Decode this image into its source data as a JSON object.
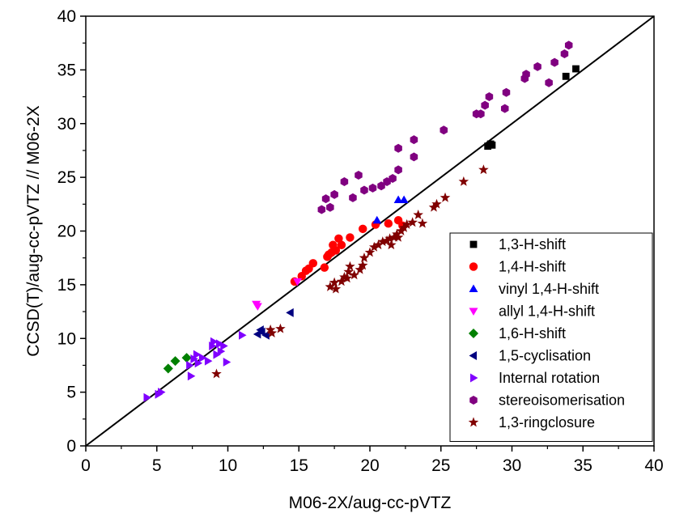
{
  "chart_data": {
    "type": "scatter",
    "title": "",
    "xlabel": "M06-2X/aug-cc-pVTZ",
    "ylabel": "CCSD(T)/aug-cc-pVTZ // M06-2X",
    "xlim": [
      0,
      40
    ],
    "ylim": [
      0,
      40
    ],
    "x_ticks": [
      "0",
      "5",
      "10",
      "15",
      "20",
      "25",
      "30",
      "35",
      "40"
    ],
    "y_ticks": [
      "0",
      "5",
      "10",
      "15",
      "20",
      "25",
      "30",
      "35",
      "40"
    ],
    "grid": false,
    "legend_position": "bottom-right",
    "reference_line": {
      "slope": 1,
      "intercept": 0,
      "color": "#000000"
    },
    "series": [
      {
        "name": "1,3-H-shift",
        "marker": "square",
        "color": "#000000",
        "points": [
          [
            28.3,
            27.9
          ],
          [
            28.6,
            28.0
          ],
          [
            28.5,
            28.1
          ],
          [
            33.8,
            34.4
          ],
          [
            34.5,
            35.1
          ]
        ]
      },
      {
        "name": "1,4-H-shift",
        "marker": "circle",
        "color": "#ff0000",
        "points": [
          [
            14.7,
            15.3
          ],
          [
            15.2,
            15.8
          ],
          [
            15.5,
            16.3
          ],
          [
            15.7,
            16.5
          ],
          [
            16.0,
            17.0
          ],
          [
            16.8,
            16.6
          ],
          [
            17.0,
            17.6
          ],
          [
            17.1,
            17.8
          ],
          [
            17.3,
            18.0
          ],
          [
            17.4,
            18.7
          ],
          [
            17.6,
            18.2
          ],
          [
            17.8,
            19.3
          ],
          [
            18.0,
            18.7
          ],
          [
            18.6,
            19.4
          ],
          [
            19.5,
            20.2
          ],
          [
            20.4,
            20.6
          ],
          [
            21.3,
            20.7
          ],
          [
            22.0,
            21.0
          ],
          [
            22.3,
            20.5
          ]
        ]
      },
      {
        "name": "vinyl 1,4-H-shift",
        "marker": "triangle-up",
        "color": "#0000ff",
        "points": [
          [
            20.5,
            21.0
          ],
          [
            22.0,
            22.9
          ],
          [
            22.4,
            22.9
          ]
        ]
      },
      {
        "name": "allyl 1,4-H-shift",
        "marker": "triangle-down",
        "color": "#ff00ff",
        "points": [
          [
            12.0,
            13.2
          ],
          [
            12.1,
            13.0
          ],
          [
            14.9,
            15.3
          ]
        ]
      },
      {
        "name": "1,6-H-shift",
        "marker": "diamond",
        "color": "#008000",
        "points": [
          [
            5.8,
            7.2
          ],
          [
            6.3,
            7.9
          ],
          [
            7.1,
            8.2
          ]
        ]
      },
      {
        "name": "1,5-cyclisation",
        "marker": "triangle-left",
        "color": "#000080",
        "points": [
          [
            12.1,
            10.4
          ],
          [
            12.4,
            10.6
          ],
          [
            12.7,
            10.3
          ],
          [
            12.3,
            10.8
          ],
          [
            14.4,
            12.4
          ]
        ]
      },
      {
        "name": "Internal rotation",
        "marker": "triangle-right",
        "color": "#8000ff",
        "points": [
          [
            4.3,
            4.5
          ],
          [
            5.1,
            4.8
          ],
          [
            5.3,
            5.0
          ],
          [
            7.3,
            7.5
          ],
          [
            7.4,
            6.5
          ],
          [
            7.6,
            8.1
          ],
          [
            7.8,
            8.5
          ],
          [
            7.9,
            7.7
          ],
          [
            8.2,
            8.2
          ],
          [
            8.6,
            7.9
          ],
          [
            8.9,
            9.3
          ],
          [
            9.0,
            9.7
          ],
          [
            9.2,
            8.5
          ],
          [
            9.4,
            9.5
          ],
          [
            9.5,
            8.8
          ],
          [
            9.7,
            9.3
          ],
          [
            9.9,
            7.8
          ],
          [
            11.0,
            10.3
          ]
        ]
      },
      {
        "name": "stereoisomerisation",
        "marker": "hexagon",
        "color": "#800080",
        "points": [
          [
            16.6,
            22.0
          ],
          [
            16.9,
            23.0
          ],
          [
            17.2,
            22.2
          ],
          [
            17.5,
            23.4
          ],
          [
            18.2,
            24.6
          ],
          [
            18.8,
            23.1
          ],
          [
            19.2,
            25.2
          ],
          [
            19.6,
            23.8
          ],
          [
            20.2,
            24.0
          ],
          [
            20.8,
            24.2
          ],
          [
            21.2,
            24.6
          ],
          [
            21.6,
            24.9
          ],
          [
            22.0,
            25.7
          ],
          [
            22.0,
            27.7
          ],
          [
            23.1,
            26.9
          ],
          [
            23.1,
            28.5
          ],
          [
            25.2,
            29.4
          ],
          [
            27.5,
            30.9
          ],
          [
            27.8,
            30.9
          ],
          [
            28.1,
            31.7
          ],
          [
            28.4,
            32.5
          ],
          [
            29.5,
            31.4
          ],
          [
            29.6,
            32.9
          ],
          [
            30.9,
            34.2
          ],
          [
            31.0,
            34.6
          ],
          [
            31.8,
            35.3
          ],
          [
            32.6,
            33.8
          ],
          [
            33.0,
            35.7
          ],
          [
            33.7,
            36.5
          ],
          [
            34.0,
            37.3
          ]
        ]
      },
      {
        "name": "1,3-ringclosure",
        "marker": "star",
        "color": "#800000",
        "points": [
          [
            9.2,
            6.7
          ],
          [
            13.0,
            10.8
          ],
          [
            13.1,
            10.5
          ],
          [
            13.7,
            10.9
          ],
          [
            17.2,
            14.8
          ],
          [
            17.5,
            15.2
          ],
          [
            17.6,
            14.6
          ],
          [
            18.0,
            15.3
          ],
          [
            18.2,
            15.7
          ],
          [
            18.4,
            15.6
          ],
          [
            18.5,
            16.2
          ],
          [
            18.6,
            16.7
          ],
          [
            18.9,
            15.9
          ],
          [
            19.3,
            16.4
          ],
          [
            19.5,
            16.8
          ],
          [
            19.6,
            17.5
          ],
          [
            20.0,
            18.0
          ],
          [
            20.3,
            18.5
          ],
          [
            20.6,
            18.7
          ],
          [
            20.9,
            19.0
          ],
          [
            21.2,
            19.1
          ],
          [
            21.4,
            19.3
          ],
          [
            21.5,
            18.7
          ],
          [
            21.7,
            19.4
          ],
          [
            21.9,
            19.7
          ],
          [
            22.0,
            19.4
          ],
          [
            22.2,
            20.0
          ],
          [
            22.4,
            20.3
          ],
          [
            22.6,
            20.6
          ],
          [
            23.0,
            20.8
          ],
          [
            23.4,
            21.5
          ],
          [
            23.7,
            20.7
          ],
          [
            24.5,
            22.2
          ],
          [
            24.7,
            22.5
          ],
          [
            25.3,
            23.1
          ],
          [
            26.6,
            24.6
          ],
          [
            28.0,
            25.7
          ]
        ]
      }
    ]
  }
}
